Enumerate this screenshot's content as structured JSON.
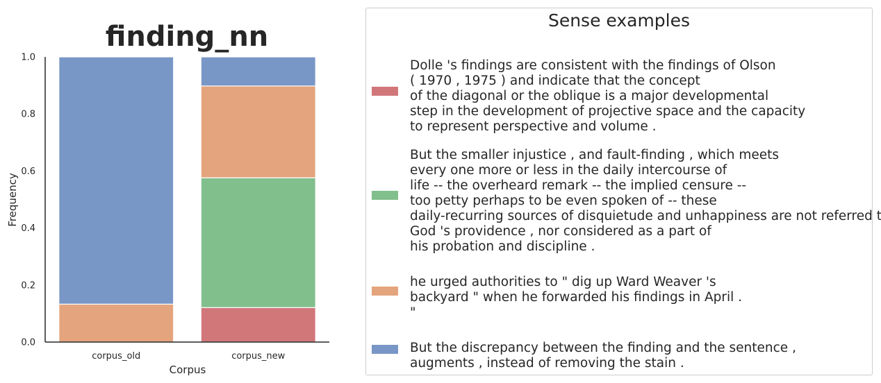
{
  "chart_data": {
    "type": "bar",
    "stacked": true,
    "title": "finding_nn",
    "xlabel": "Corpus",
    "ylabel": "Frequency",
    "ylim": [
      0,
      1.0
    ],
    "yticks": [
      "0.0",
      "0.2",
      "0.4",
      "0.6",
      "0.8",
      "1.0"
    ],
    "categories": [
      "corpus_old",
      "corpus_new"
    ],
    "series": [
      {
        "color": "#d1777a",
        "values": [
          0.0,
          0.121
        ]
      },
      {
        "color": "#81bf8d",
        "values": [
          0.0,
          0.455
        ]
      },
      {
        "color": "#e4a47d",
        "values": [
          0.133,
          0.322
        ]
      },
      {
        "color": "#7997c6",
        "values": [
          0.867,
          0.102
        ]
      }
    ],
    "grid": false,
    "legend": {
      "title": "Sense examples",
      "placement": "right",
      "entries": [
        {
          "color": "#d1777a",
          "text": "Dolle 's findings are consistent with the findings of Olson\n( 1970 , 1975 ) and indicate that the concept\nof the diagonal or the oblique is a major developmental\nstep in the development of projective space and the capacity\nto represent perspective and volume ."
        },
        {
          "color": "#81bf8d",
          "text": "But the smaller injustice , and fault-finding , which meets\nevery one more or less in the daily intercourse of\nlife -- the overheard remark -- the implied censure --\ntoo petty perhaps to be even spoken of -- these\ndaily-recurring sources of disquietude and unhappiness are not referred to\nGod 's providence , nor considered as a part of\nhis probation and discipline ."
        },
        {
          "color": "#e4a47d",
          "text": "he urged authorities to \" dig up Ward Weaver 's\nbackyard \" when he forwarded his findings in April .\n\""
        },
        {
          "color": "#7997c6",
          "text": "But the discrepancy between the finding and the sentence ,\naugments , instead of removing the stain ."
        }
      ]
    }
  }
}
